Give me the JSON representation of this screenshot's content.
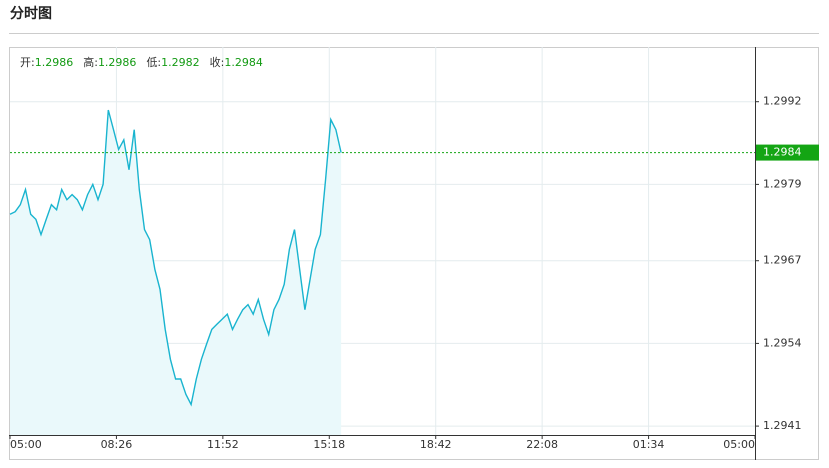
{
  "header": {
    "title": "分时图"
  },
  "chart_data": {
    "type": "line",
    "stats": [
      {
        "label": "开:",
        "value": 1.2986
      },
      {
        "label": "高:",
        "value": 1.2986
      },
      {
        "label": "低:",
        "value": 1.2982
      },
      {
        "label": "收:",
        "value": 1.2984
      }
    ],
    "stats_color": "#139a13",
    "x": [
      "05:00",
      "05:10",
      "05:20",
      "05:30",
      "05:40",
      "05:50",
      "06:00",
      "06:10",
      "06:20",
      "06:30",
      "06:40",
      "06:50",
      "07:00",
      "07:10",
      "07:20",
      "07:30",
      "07:40",
      "07:50",
      "08:00",
      "08:10",
      "08:20",
      "08:30",
      "08:40",
      "08:50",
      "09:00",
      "09:10",
      "09:20",
      "09:30",
      "09:40",
      "09:50",
      "10:00",
      "10:10",
      "10:20",
      "10:30",
      "10:40",
      "10:50",
      "11:00",
      "11:10",
      "11:20",
      "11:30",
      "11:40",
      "11:50",
      "12:00",
      "12:10",
      "12:20",
      "12:30",
      "12:40",
      "12:50",
      "13:00",
      "13:10",
      "13:20",
      "13:30",
      "13:40",
      "13:50",
      "14:00",
      "14:10",
      "14:20",
      "14:30",
      "14:40",
      "14:50",
      "15:00",
      "15:10",
      "15:20",
      "15:30",
      "15:40"
    ],
    "series": [
      {
        "color": "#19b4cf",
        "fill": "#eaf9fb",
        "values": [
          1.29743,
          1.29747,
          1.29758,
          1.29782,
          1.29743,
          1.29735,
          1.29711,
          1.29735,
          1.29758,
          1.2975,
          1.29782,
          1.29766,
          1.29774,
          1.29766,
          1.2975,
          1.29774,
          1.2979,
          1.29766,
          1.2979,
          1.29907,
          1.29876,
          1.29845,
          1.2986,
          1.29813,
          1.29876,
          1.29782,
          1.29719,
          1.29703,
          1.29656,
          1.29625,
          1.29562,
          1.29515,
          1.29484,
          1.29484,
          1.2946,
          1.29444,
          1.29484,
          1.29515,
          1.29539,
          1.29562,
          1.2957,
          1.29578,
          1.29586,
          1.29562,
          1.29578,
          1.29593,
          1.29601,
          1.29586,
          1.29609,
          1.29578,
          1.29554,
          1.29593,
          1.29609,
          1.29633,
          1.29688,
          1.29719,
          1.29656,
          1.29593,
          1.29641,
          1.29688,
          1.29711,
          1.29798,
          1.29892,
          1.29876,
          1.2984
        ]
      }
    ],
    "xticks": [
      "05:00",
      "08:26",
      "11:52",
      "15:18",
      "18:42",
      "22:08",
      "01:34",
      "05:00"
    ],
    "ylim": [
      1.29396,
      1.30006
    ],
    "yticks": [
      1.2941,
      1.2954,
      1.2967,
      1.2979,
      1.2992
    ],
    "last": 1.2984,
    "last_color": "#14a514",
    "grid": true
  }
}
